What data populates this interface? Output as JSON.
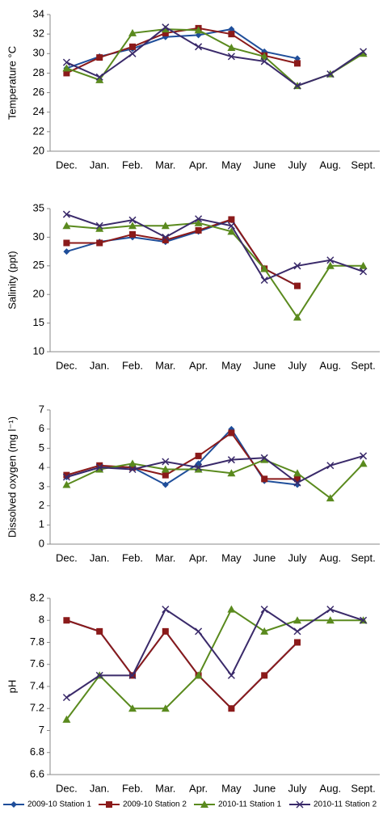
{
  "chart_data": [
    {
      "type": "line",
      "y_label": "Temperature °C",
      "categories": [
        "Dec.",
        "Jan.",
        "Feb.",
        "Mar.",
        "Apr.",
        "May",
        "June",
        "July",
        "Aug.",
        "Sept."
      ],
      "ylim": [
        20,
        34
      ],
      "yticks": [
        20,
        22,
        24,
        26,
        28,
        30,
        32,
        34
      ],
      "series": [
        {
          "name": "2009-10 Station 1",
          "color": "#1f4e9a",
          "marker": "diamond",
          "values": [
            28.5,
            29.7,
            30.5,
            31.7,
            31.9,
            32.5,
            30.2,
            29.5,
            null,
            null
          ]
        },
        {
          "name": "2009-10 Station 2",
          "color": "#8b1a1a",
          "marker": "square",
          "values": [
            28,
            29.6,
            30.7,
            32.1,
            32.6,
            32.0,
            29.8,
            29.0,
            null,
            null
          ]
        },
        {
          "name": "2010-11 Station 1",
          "color": "#5a8a1e",
          "marker": "triangle",
          "values": [
            28.5,
            27.3,
            32.1,
            32.5,
            32.4,
            30.6,
            29.7,
            26.7,
            27.9,
            30.0
          ]
        },
        {
          "name": "2010-11 Station 2",
          "color": "#3a2a6a",
          "marker": "x",
          "values": [
            29.1,
            27.6,
            30.0,
            32.7,
            30.7,
            29.7,
            29.2,
            26.7,
            27.9,
            30.2
          ]
        }
      ]
    },
    {
      "type": "line",
      "y_label": "Salinity (ppt)",
      "categories": [
        "Dec.",
        "Jan.",
        "Feb.",
        "Mar.",
        "Apr.",
        "May",
        "June",
        "July",
        "Aug.",
        "Sept."
      ],
      "ylim": [
        10,
        35
      ],
      "yticks": [
        10,
        15,
        20,
        25,
        30,
        35
      ],
      "series": [
        {
          "name": "2009-10 Station 1",
          "color": "#1f4e9a",
          "marker": "diamond",
          "values": [
            27.5,
            29.2,
            30,
            29.2,
            31,
            33,
            24.5,
            21.5,
            null,
            null
          ]
        },
        {
          "name": "2009-10 Station 2",
          "color": "#8b1a1a",
          "marker": "square",
          "values": [
            29,
            29,
            30.5,
            29.5,
            31.2,
            33.1,
            24.5,
            21.5,
            null,
            null
          ]
        },
        {
          "name": "2010-11 Station 1",
          "color": "#5a8a1e",
          "marker": "triangle",
          "values": [
            32,
            31.5,
            32,
            32,
            32.5,
            31,
            24.5,
            16,
            25,
            25
          ]
        },
        {
          "name": "2010-11 Station 2",
          "color": "#3a2a6a",
          "marker": "x",
          "values": [
            34,
            32,
            33,
            30,
            33.2,
            32,
            22.5,
            25,
            26,
            24
          ]
        }
      ]
    },
    {
      "type": "line",
      "y_label": "Dissolved oxygen (mg l⁻¹)",
      "categories": [
        "Dec.",
        "Jan.",
        "Feb.",
        "Mar.",
        "Apr.",
        "May",
        "June",
        "July",
        "Aug.",
        "Sept."
      ],
      "ylim": [
        0,
        7
      ],
      "yticks": [
        0,
        1,
        2,
        3,
        4,
        5,
        6,
        7
      ],
      "series": [
        {
          "name": "2009-10 Station 1",
          "color": "#1f4e9a",
          "marker": "diamond",
          "values": [
            3.5,
            4.0,
            4.0,
            3.1,
            4.2,
            6.0,
            3.3,
            3.1,
            null,
            null
          ]
        },
        {
          "name": "2009-10 Station 2",
          "color": "#8b1a1a",
          "marker": "square",
          "values": [
            3.6,
            4.1,
            4.0,
            3.6,
            4.6,
            5.8,
            3.4,
            3.4,
            null,
            null
          ]
        },
        {
          "name": "2010-11 Station 1",
          "color": "#5a8a1e",
          "marker": "triangle",
          "values": [
            3.1,
            3.9,
            4.2,
            3.9,
            3.9,
            3.7,
            4.4,
            3.7,
            2.4,
            4.2
          ]
        },
        {
          "name": "2010-11 Station 2",
          "color": "#3a2a6a",
          "marker": "x",
          "values": [
            3.5,
            4.0,
            3.9,
            4.3,
            4.0,
            4.4,
            4.5,
            3.2,
            4.1,
            4.6
          ]
        }
      ]
    },
    {
      "type": "line",
      "y_label": "pH",
      "categories": [
        "Dec.",
        "Jan.",
        "Feb.",
        "Mar.",
        "Apr.",
        "May",
        "June",
        "July",
        "Aug.",
        "Sept."
      ],
      "ylim": [
        6.6,
        8.2
      ],
      "yticks": [
        6.6,
        6.8,
        7,
        7.2,
        7.4,
        7.6,
        7.8,
        8,
        8.2
      ],
      "series": [
        {
          "name": "2009-10 Station 1",
          "color": "#1f4e9a",
          "marker": "diamond",
          "values": [
            8,
            7.9,
            7.5,
            7.9,
            7.5,
            7.2,
            7.5,
            7.8,
            null,
            null
          ]
        },
        {
          "name": "2009-10 Station 2",
          "color": "#8b1a1a",
          "marker": "square",
          "values": [
            8,
            7.9,
            7.5,
            7.9,
            7.5,
            7.2,
            7.5,
            7.8,
            null,
            null
          ]
        },
        {
          "name": "2010-11 Station 1",
          "color": "#5a8a1e",
          "marker": "triangle",
          "values": [
            7.1,
            7.5,
            7.2,
            7.2,
            7.5,
            8.1,
            7.9,
            8.0,
            8.0,
            8.0
          ]
        },
        {
          "name": "2010-11 Station 2",
          "color": "#3a2a6a",
          "marker": "x",
          "values": [
            7.3,
            7.5,
            7.5,
            8.1,
            7.9,
            7.5,
            8.1,
            7.9,
            8.1,
            8.0
          ]
        }
      ]
    }
  ]
}
